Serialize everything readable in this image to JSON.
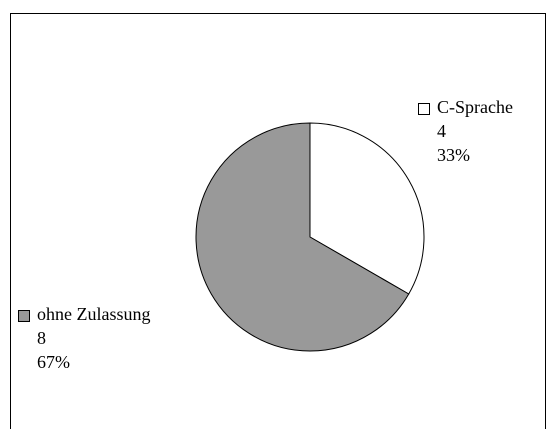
{
  "chart_data": {
    "type": "pie",
    "categories": [
      "C-Sprache",
      "ohne Zulassung"
    ],
    "values": [
      4,
      8
    ],
    "percentages": [
      33,
      67
    ],
    "percentage_labels": [
      "33%",
      "67%"
    ],
    "colors": [
      "#ffffff",
      "#999999"
    ],
    "start_angle": 0,
    "direction": "clockwise"
  }
}
